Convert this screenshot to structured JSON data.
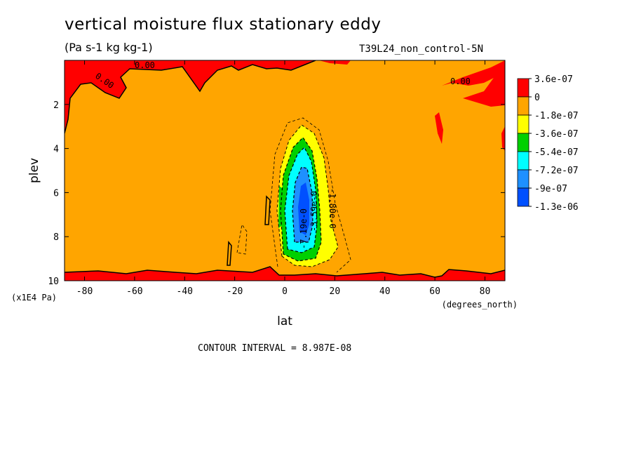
{
  "header": {
    "title": "vertical moisture flux stationary eddy",
    "units": "(Pa s-1 kg kg-1)",
    "run_label": "T39L24_non_control-5N"
  },
  "footer": {
    "contour_interval": "CONTOUR INTERVAL = 8.987E-08"
  },
  "chart_data": {
    "type": "contour",
    "title": "vertical moisture flux stationary eddy",
    "subtitle": "(Pa s-1 kg kg-1)",
    "xlabel": "lat",
    "xunits": "(degrees_north)",
    "ylabel": "plev",
    "yunits": "(x1E4 Pa)",
    "xlim": [
      -88,
      88
    ],
    "ylim": [
      10,
      0
    ],
    "xticks": [
      -80,
      -60,
      -40,
      -20,
      0,
      20,
      40,
      60,
      80
    ],
    "yticks": [
      2,
      4,
      6,
      8,
      10
    ],
    "legend": {
      "position": "right",
      "levels": [
        "3.6e-07",
        "0",
        "-1.8e-07",
        "-3.6e-07",
        "-5.4e-07",
        "-7.2e-07",
        "-9e-07",
        "-1.3e-06"
      ],
      "colors": [
        "#ff0000",
        "#ffa500",
        "#ffff00",
        "#00d000",
        "#00ffff",
        "#1e90ff",
        "#0050ff"
      ]
    },
    "contour_labels": [
      "0.00",
      "0.00",
      "0.00",
      "-1.80e-0",
      "-3.59e-0",
      "-7.19e-0"
    ],
    "contour_interval": "8.987E-08",
    "features": [
      {
        "region": "negative core",
        "lat_center": 8,
        "plev_center": 6.5,
        "min_value": "-1.3e-06"
      },
      {
        "region": "positive band",
        "location": "top (plev < 2)"
      },
      {
        "region": "positive band",
        "location": "bottom (plev > 9)"
      }
    ]
  }
}
